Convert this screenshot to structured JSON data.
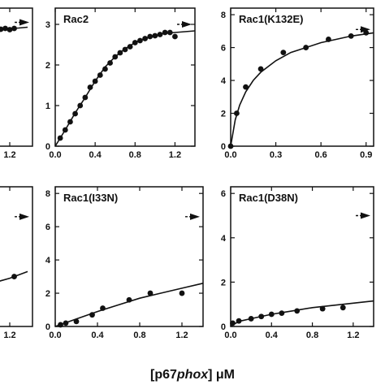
{
  "chart_data": [
    {
      "id": "left-top",
      "type": "scatter",
      "title": "",
      "xticks": [
        {
          "v": 1.2,
          "label": "1.2"
        }
      ],
      "xlim": [
        0,
        1.4
      ],
      "yticks": [],
      "ylim": [
        0,
        3.4
      ],
      "arrow_y": 3.05,
      "points": [
        [
          1.05,
          2.9
        ],
        [
          1.1,
          2.88
        ],
        [
          1.15,
          2.9
        ],
        [
          1.2,
          2.87
        ],
        [
          1.25,
          2.9
        ]
      ],
      "curve": [
        [
          1.0,
          2.88
        ],
        [
          1.1,
          2.89
        ],
        [
          1.2,
          2.9
        ],
        [
          1.3,
          2.91
        ],
        [
          1.4,
          2.93
        ]
      ]
    },
    {
      "id": "rac2",
      "type": "scatter",
      "title": "Rac2",
      "xticks": [
        {
          "v": 0,
          "label": "0.0"
        },
        {
          "v": 0.4,
          "label": "0.4"
        },
        {
          "v": 0.8,
          "label": "0.8"
        },
        {
          "v": 1.2,
          "label": "1.2"
        }
      ],
      "xlim": [
        0,
        1.4
      ],
      "yticks": [
        {
          "v": 0,
          "label": "0"
        },
        {
          "v": 1,
          "label": "1"
        },
        {
          "v": 2,
          "label": "2"
        },
        {
          "v": 3,
          "label": "3"
        }
      ],
      "ylim": [
        0,
        3.4
      ],
      "arrow_y": 3.0,
      "points": [
        [
          0.05,
          0.2
        ],
        [
          0.1,
          0.4
        ],
        [
          0.15,
          0.6
        ],
        [
          0.2,
          0.8
        ],
        [
          0.25,
          1.0
        ],
        [
          0.3,
          1.2
        ],
        [
          0.35,
          1.45
        ],
        [
          0.4,
          1.6
        ],
        [
          0.45,
          1.75
        ],
        [
          0.5,
          1.9
        ],
        [
          0.55,
          2.05
        ],
        [
          0.6,
          2.2
        ],
        [
          0.65,
          2.3
        ],
        [
          0.7,
          2.38
        ],
        [
          0.75,
          2.45
        ],
        [
          0.8,
          2.55
        ],
        [
          0.85,
          2.6
        ],
        [
          0.9,
          2.65
        ],
        [
          0.95,
          2.7
        ],
        [
          1.0,
          2.72
        ],
        [
          1.05,
          2.75
        ],
        [
          1.1,
          2.8
        ],
        [
          1.15,
          2.8
        ],
        [
          1.2,
          2.7
        ]
      ],
      "curve": [
        [
          0,
          0
        ],
        [
          0.1,
          0.4
        ],
        [
          0.2,
          0.82
        ],
        [
          0.3,
          1.2
        ],
        [
          0.4,
          1.6
        ],
        [
          0.5,
          1.95
        ],
        [
          0.6,
          2.2
        ],
        [
          0.7,
          2.4
        ],
        [
          0.8,
          2.55
        ],
        [
          0.9,
          2.65
        ],
        [
          1.0,
          2.72
        ],
        [
          1.1,
          2.78
        ],
        [
          1.2,
          2.8
        ],
        [
          1.3,
          2.82
        ],
        [
          1.4,
          2.84
        ]
      ]
    },
    {
      "id": "rac1-k132e",
      "type": "scatter",
      "title": "Rac1(K132E)",
      "xticks": [
        {
          "v": 0,
          "label": "0.0"
        },
        {
          "v": 0.3,
          "label": "0.3"
        },
        {
          "v": 0.6,
          "label": "0.6"
        },
        {
          "v": 0.9,
          "label": "0.9"
        }
      ],
      "xlim": [
        0,
        0.95
      ],
      "yticks": [
        {
          "v": 0,
          "label": "0"
        },
        {
          "v": 2,
          "label": "2"
        },
        {
          "v": 4,
          "label": "4"
        },
        {
          "v": 6,
          "label": "6"
        },
        {
          "v": 8,
          "label": "8"
        }
      ],
      "ylim": [
        0,
        8.4
      ],
      "arrow_y": 7.1,
      "points": [
        [
          0,
          0
        ],
        [
          0.04,
          2.0
        ],
        [
          0.1,
          3.6
        ],
        [
          0.2,
          4.7
        ],
        [
          0.35,
          5.7
        ],
        [
          0.5,
          6.0
        ],
        [
          0.65,
          6.5
        ],
        [
          0.8,
          6.7
        ],
        [
          0.9,
          6.9
        ]
      ],
      "curve": [
        [
          0,
          0
        ],
        [
          0.03,
          1.6
        ],
        [
          0.06,
          2.5
        ],
        [
          0.1,
          3.3
        ],
        [
          0.15,
          4.0
        ],
        [
          0.2,
          4.5
        ],
        [
          0.3,
          5.2
        ],
        [
          0.4,
          5.7
        ],
        [
          0.5,
          6.0
        ],
        [
          0.6,
          6.3
        ],
        [
          0.7,
          6.5
        ],
        [
          0.8,
          6.7
        ],
        [
          0.95,
          6.9
        ]
      ]
    },
    {
      "id": "left-bottom",
      "type": "scatter",
      "title": "",
      "xticks": [
        {
          "v": 1.2,
          "label": "1.2"
        }
      ],
      "xlim": [
        0,
        1.4
      ],
      "yticks": [],
      "ylim": [
        0,
        8.4
      ],
      "arrow_y": 6.6,
      "points": [
        [
          1.25,
          3.0
        ]
      ],
      "curve": [
        [
          1.0,
          2.6
        ],
        [
          1.2,
          2.9
        ],
        [
          1.4,
          3.3
        ]
      ]
    },
    {
      "id": "rac1-i33n",
      "type": "scatter",
      "title": "Rac1(I33N)",
      "xticks": [
        {
          "v": 0,
          "label": "0.0"
        },
        {
          "v": 0.4,
          "label": "0.4"
        },
        {
          "v": 0.8,
          "label": "0.8"
        },
        {
          "v": 1.2,
          "label": "1.2"
        }
      ],
      "xlim": [
        0,
        1.4
      ],
      "yticks": [
        {
          "v": 0,
          "label": "0"
        },
        {
          "v": 2,
          "label": "2"
        },
        {
          "v": 4,
          "label": "4"
        },
        {
          "v": 6,
          "label": "6"
        },
        {
          "v": 8,
          "label": "8"
        }
      ],
      "ylim": [
        0,
        8.4
      ],
      "arrow_y": 6.6,
      "points": [
        [
          0.05,
          0.1
        ],
        [
          0.1,
          0.2
        ],
        [
          0.2,
          0.3
        ],
        [
          0.35,
          0.7
        ],
        [
          0.45,
          1.1
        ],
        [
          0.7,
          1.6
        ],
        [
          0.9,
          2.0
        ],
        [
          1.2,
          2.0
        ]
      ],
      "curve": [
        [
          0,
          0
        ],
        [
          0.2,
          0.45
        ],
        [
          0.4,
          0.9
        ],
        [
          0.6,
          1.3
        ],
        [
          0.8,
          1.7
        ],
        [
          1.0,
          2.0
        ],
        [
          1.2,
          2.3
        ],
        [
          1.4,
          2.6
        ]
      ]
    },
    {
      "id": "rac1-d38n",
      "type": "scatter",
      "title": "Rac1(D38N)",
      "xticks": [
        {
          "v": 0,
          "label": "0.0"
        },
        {
          "v": 0.4,
          "label": "0.4"
        },
        {
          "v": 0.8,
          "label": "0.8"
        },
        {
          "v": 1.2,
          "label": "1.2"
        }
      ],
      "xlim": [
        0,
        1.4
      ],
      "yticks": [
        {
          "v": 0,
          "label": "0"
        },
        {
          "v": 2,
          "label": "2"
        },
        {
          "v": 4,
          "label": "4"
        },
        {
          "v": 6,
          "label": "6"
        }
      ],
      "ylim": [
        0,
        6.3
      ],
      "arrow_y": 5.0,
      "points": [
        [
          0.02,
          0.15
        ],
        [
          0.08,
          0.25
        ],
        [
          0.2,
          0.35
        ],
        [
          0.3,
          0.45
        ],
        [
          0.4,
          0.55
        ],
        [
          0.5,
          0.6
        ],
        [
          0.65,
          0.7
        ],
        [
          0.9,
          0.8
        ],
        [
          1.1,
          0.85
        ]
      ],
      "curve": [
        [
          0,
          0
        ],
        [
          0.05,
          0.15
        ],
        [
          0.1,
          0.25
        ],
        [
          0.2,
          0.35
        ],
        [
          0.4,
          0.55
        ],
        [
          0.6,
          0.7
        ],
        [
          0.8,
          0.85
        ],
        [
          1.0,
          0.95
        ],
        [
          1.2,
          1.05
        ],
        [
          1.4,
          1.15
        ]
      ]
    }
  ],
  "xlabel": {
    "prefix": "[p67",
    "italic": "phox",
    "suffix": "] μM"
  }
}
